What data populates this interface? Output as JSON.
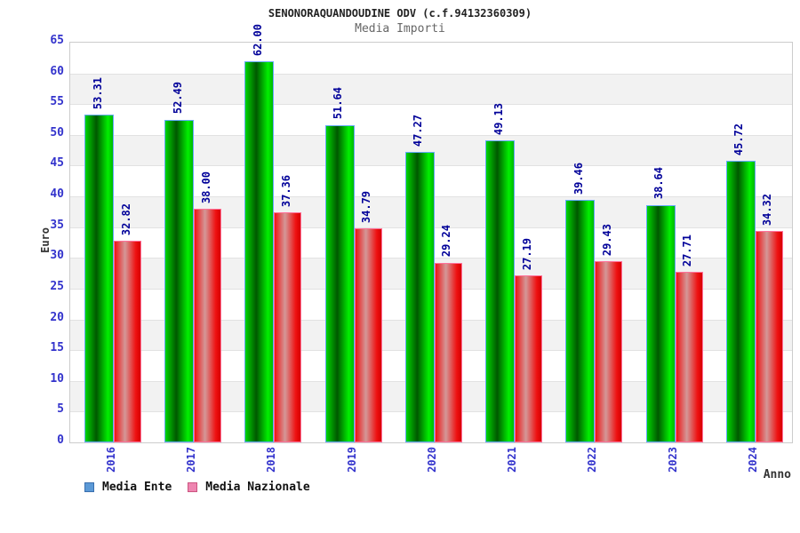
{
  "header": {
    "title": "SENONORAQUANDOUDINE ODV (c.f.94132360309)",
    "subtitle": "Media Importi"
  },
  "chart_data": {
    "type": "bar",
    "title": "SENONORAQUANDOUDINE ODV (c.f.94132360309)",
    "subtitle": "Media Importi",
    "xlabel": "Anno",
    "ylabel": "Euro",
    "ylim": [
      0,
      65
    ],
    "ytick_step": 5,
    "grid": true,
    "legend_position": "bottom-left",
    "categories": [
      "2016",
      "2017",
      "2018",
      "2019",
      "2020",
      "2021",
      "2022",
      "2023",
      "2024"
    ],
    "series": [
      {
        "name": "Media Ente",
        "values": [
          53.31,
          52.49,
          62.0,
          51.64,
          47.27,
          49.13,
          39.46,
          38.64,
          45.72
        ],
        "swatch_fill": "#5b99d6",
        "swatch_border": "#3a6fae",
        "bar_border": "#66aaff",
        "bar_gradient": [
          "#00d400",
          "#005800",
          "#00ee00",
          "#00b800"
        ]
      },
      {
        "name": "Media Nazionale",
        "values": [
          32.82,
          38.0,
          37.36,
          34.79,
          29.24,
          27.19,
          29.43,
          27.71,
          34.32
        ],
        "swatch_fill": "#ee85b0",
        "swatch_border": "#cc5580",
        "bar_border": "#ff7099",
        "bar_gradient": [
          "#ee1515",
          "#d49898",
          "#ee1111",
          "#d80000"
        ]
      }
    ]
  },
  "colors": {
    "tick_label": "#3333cc",
    "value_label": "#000099",
    "axis_title": "#333333",
    "plot_border": "#cccccc",
    "band_light": "#ffffff",
    "band_dark": "#f2f2f2",
    "grid_line": "#e2e2e2",
    "title_text": "#222222",
    "subtitle_text": "#666666"
  }
}
